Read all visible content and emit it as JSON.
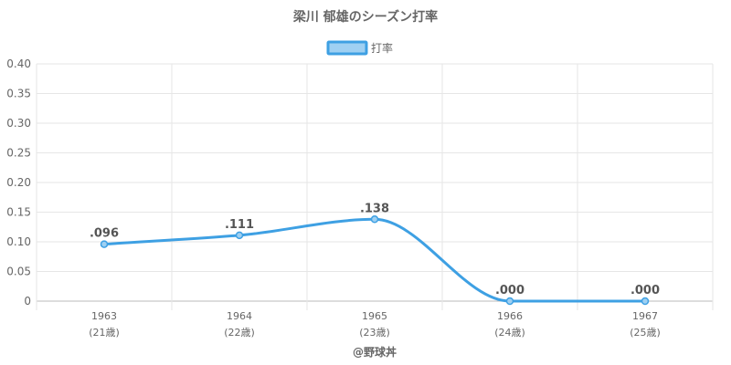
{
  "colors": {
    "line": "#3ea0e3",
    "legend_fill": "#9fd0f2",
    "grid": "#e6e6e6",
    "axis": "#bbbbbb",
    "text": "#666666"
  },
  "chart_data": {
    "type": "line",
    "title": "梁川 郁雄のシーズン打率",
    "legend": "打率",
    "legend_position": "top-center",
    "categories": [
      "1963",
      "1964",
      "1965",
      "1966",
      "1967"
    ],
    "sub_labels": [
      "(21歳)",
      "(22歳)",
      "(23歳)",
      "(24歳)",
      "(25歳)"
    ],
    "series": [
      {
        "name": "打率",
        "values": [
          0.096,
          0.111,
          0.138,
          0.0,
          0.0
        ],
        "labels": [
          ".096",
          ".111",
          ".138",
          ".000",
          ".000"
        ]
      }
    ],
    "y_ticks": [
      "0",
      "0.05",
      "0.10",
      "0.15",
      "0.20",
      "0.25",
      "0.30",
      "0.35",
      "0.40"
    ],
    "ylim": [
      0,
      0.4
    ],
    "grid": true
  },
  "credit": "@野球丼"
}
